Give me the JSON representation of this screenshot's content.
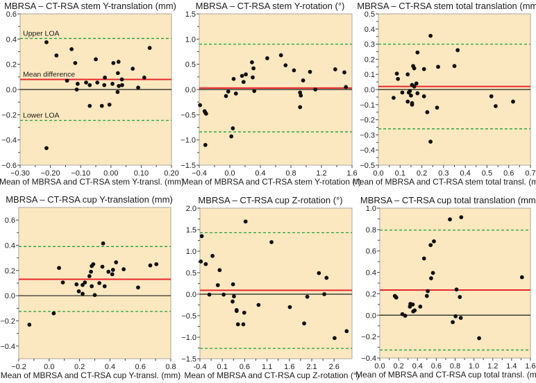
{
  "colors": {
    "background": "#fbe8c0",
    "mean_line": "#e8262b",
    "loa_line": "#1f9e3a",
    "zero_line": "#1a1a1a",
    "points": "#111111",
    "frame": "#b9b2a6"
  },
  "chart_data": [
    {
      "type": "scatter",
      "title": "MBRSA – CT-RSA stem Y-translation (mm)",
      "xlabel": "Mean of MBRSA and CT-RSA stem Y-transl. (mm)",
      "ylabel": "",
      "xlim": [
        -0.3,
        0.2
      ],
      "ylim": [
        -0.6,
        0.6
      ],
      "xticks": [
        -0.3,
        -0.2,
        -0.1,
        0.0,
        0.1,
        0.2
      ],
      "xtick_labels": [
        "−0.30",
        "−0.20",
        "−0.10",
        "0.00",
        "0.10",
        "0.20"
      ],
      "yticks": [
        -0.6,
        -0.4,
        -0.2,
        0.0,
        0.2,
        0.4,
        0.6
      ],
      "ytick_labels": [
        "−0.6",
        "−0.4",
        "−0.2",
        "0.0",
        "0.2",
        "0.4",
        "0.6"
      ],
      "mean_difference": 0.08,
      "upper_loa": 0.405,
      "lower_loa": -0.245,
      "annotations": {
        "upper": "Upper LOA",
        "mean": "Mean difference",
        "lower": "Lower LOA"
      },
      "points": [
        [
          -0.213,
          0.375
        ],
        [
          -0.18,
          0.27
        ],
        [
          -0.13,
          0.32
        ],
        [
          -0.118,
          0.21
        ],
        [
          -0.145,
          0.07
        ],
        [
          -0.11,
          0.045
        ],
        [
          -0.113,
          0.0
        ],
        [
          -0.082,
          0.055
        ],
        [
          -0.07,
          0.035
        ],
        [
          -0.045,
          0.055
        ],
        [
          -0.05,
          0.24
        ],
        [
          -0.02,
          0.095
        ],
        [
          -0.022,
          0.035
        ],
        [
          0.005,
          0.045
        ],
        [
          0.008,
          0.21
        ],
        [
          0.025,
          0.22
        ],
        [
          0.023,
          0.13
        ],
        [
          0.036,
          0.08
        ],
        [
          0.026,
          0.028
        ],
        [
          0.037,
          0.035
        ],
        [
          0.022,
          -0.02
        ],
        [
          -0.07,
          -0.13
        ],
        [
          -0.03,
          -0.13
        ],
        [
          -0.005,
          -0.12
        ],
        [
          0.072,
          0.165
        ],
        [
          0.09,
          0.015
        ],
        [
          0.11,
          0.095
        ],
        [
          0.128,
          0.33
        ],
        [
          -0.213,
          -0.465
        ]
      ]
    },
    {
      "type": "scatter",
      "title": "MBRSA – CT-RSA stem Y-rotation (°)",
      "xlabel": "Mean of MBRSA and CT-RSA stem Y-rotation (°)",
      "ylabel": "",
      "xlim": [
        -0.4,
        1.6
      ],
      "ylim": [
        -1.5,
        1.5
      ],
      "xticks": [
        -0.4,
        0.0,
        0.4,
        0.8,
        1.2,
        1.6
      ],
      "xtick_labels": [
        "−0.4",
        "0.0",
        "0.4",
        "0.8",
        "1.2",
        "1.6"
      ],
      "yticks": [
        -1.5,
        -1.0,
        -0.5,
        0.0,
        0.5,
        1.0,
        1.5
      ],
      "ytick_labels": [
        "−1.5",
        "−1.0",
        "−0.5",
        "0.0",
        "0.5",
        "1.0",
        "1.5"
      ],
      "mean_difference": 0.03,
      "upper_loa": 0.9,
      "lower_loa": -0.84,
      "points": [
        [
          -0.39,
          -0.31
        ],
        [
          -0.33,
          -0.43
        ],
        [
          -0.32,
          -0.46
        ],
        [
          -0.31,
          -0.48
        ],
        [
          -0.32,
          -1.1
        ],
        [
          -0.05,
          -0.13
        ],
        [
          -0.02,
          -0.04
        ],
        [
          0.08,
          -0.08
        ],
        [
          0.02,
          -0.93
        ],
        [
          0.04,
          -0.77
        ],
        [
          0.05,
          0.21
        ],
        [
          0.16,
          0.27
        ],
        [
          0.18,
          0.15
        ],
        [
          0.21,
          0.3
        ],
        [
          0.29,
          0.54
        ],
        [
          0.31,
          0.42
        ],
        [
          0.3,
          0.24
        ],
        [
          0.32,
          -0.03
        ],
        [
          0.49,
          0.62
        ],
        [
          0.67,
          0.68
        ],
        [
          0.73,
          0.48
        ],
        [
          0.84,
          0.38
        ],
        [
          0.92,
          -0.06
        ],
        [
          0.93,
          -0.12
        ],
        [
          0.92,
          -0.35
        ],
        [
          0.96,
          0.18
        ],
        [
          1.05,
          0.35
        ],
        [
          1.12,
          0.0
        ],
        [
          1.38,
          0.4
        ],
        [
          1.5,
          0.34
        ],
        [
          1.52,
          0.05
        ]
      ]
    },
    {
      "type": "scatter",
      "title": "MBRSA – CT-RSA stem total translation (mm)",
      "xlabel": "Mean of MBRSA and CT-RSA stem total transl. (mm)",
      "ylabel": "",
      "xlim": [
        0.0,
        0.7
      ],
      "ylim": [
        -0.5,
        0.5
      ],
      "xticks": [
        0.0,
        0.1,
        0.2,
        0.3,
        0.4,
        0.5,
        0.6,
        0.7
      ],
      "xtick_labels": [
        "0.0",
        "0.1",
        "0.2",
        "0.3",
        "0.4",
        "0.5",
        "0.6",
        "0.7"
      ],
      "yticks": [
        -0.5,
        -0.4,
        -0.3,
        -0.2,
        -0.1,
        0.0,
        0.1,
        0.2,
        0.3,
        0.4,
        0.5
      ],
      "ytick_labels": [
        "−0.5",
        "−0.4",
        "−0.3",
        "−0.2",
        "−0.1",
        "0.0",
        "0.1",
        "0.2",
        "0.3",
        "0.4",
        "0.5"
      ],
      "mean_difference": 0.02,
      "upper_loa": 0.3,
      "lower_loa": -0.26,
      "points": [
        [
          0.07,
          -0.055
        ],
        [
          0.085,
          0.105
        ],
        [
          0.09,
          0.07
        ],
        [
          0.11,
          -0.02
        ],
        [
          0.135,
          -0.08
        ],
        [
          0.135,
          0.1
        ],
        [
          0.14,
          -0.02
        ],
        [
          0.145,
          -0.01
        ],
        [
          0.15,
          -0.04
        ],
        [
          0.155,
          -0.09
        ],
        [
          0.155,
          -0.1
        ],
        [
          0.155,
          0.03
        ],
        [
          0.16,
          0.155
        ],
        [
          0.165,
          0.14
        ],
        [
          0.165,
          0.02
        ],
        [
          0.175,
          0.04
        ],
        [
          0.18,
          0.245
        ],
        [
          0.18,
          -0.025
        ],
        [
          0.21,
          0.135
        ],
        [
          0.21,
          -0.045
        ],
        [
          0.225,
          -0.15
        ],
        [
          0.24,
          0.355
        ],
        [
          0.24,
          -0.345
        ],
        [
          0.27,
          -0.12
        ],
        [
          0.275,
          0.15
        ],
        [
          0.35,
          0.155
        ],
        [
          0.365,
          0.26
        ],
        [
          0.52,
          -0.045
        ],
        [
          0.54,
          -0.11
        ],
        [
          0.62,
          -0.08
        ]
      ]
    },
    {
      "type": "scatter",
      "title": "MBRSA – CT-RSA cup Y-translation (mm)",
      "xlabel": "Mean of MBRSA and CT-RSA cup Y-transl. (mm)",
      "ylabel": "",
      "xlim": [
        -0.2,
        0.8
      ],
      "ylim": [
        -0.5,
        0.7
      ],
      "xticks": [
        -0.2,
        0.0,
        0.2,
        0.4,
        0.6,
        0.8
      ],
      "xtick_labels": [
        "−0.2",
        "0.0",
        "0.2",
        "0.4",
        "0.6",
        "0.8"
      ],
      "yticks": [
        -0.4,
        -0.2,
        0.0,
        0.2,
        0.4,
        0.6
      ],
      "ytick_labels": [
        "−0.4",
        "−0.2",
        "0.0",
        "0.2",
        "0.4",
        "0.6"
      ],
      "mean_difference": 0.13,
      "upper_loa": 0.39,
      "lower_loa": -0.125,
      "points": [
        [
          -0.13,
          -0.23
        ],
        [
          0.03,
          -0.14
        ],
        [
          0.065,
          0.22
        ],
        [
          0.09,
          0.105
        ],
        [
          0.18,
          0.09
        ],
        [
          0.195,
          0.035
        ],
        [
          0.22,
          0.015
        ],
        [
          0.22,
          0.085
        ],
        [
          0.235,
          0.105
        ],
        [
          0.265,
          0.155
        ],
        [
          0.275,
          0.19
        ],
        [
          0.28,
          0.235
        ],
        [
          0.29,
          0.25
        ],
        [
          0.28,
          0.075
        ],
        [
          0.3,
          0.005
        ],
        [
          0.33,
          0.1
        ],
        [
          0.35,
          0.23
        ],
        [
          0.355,
          0.415
        ],
        [
          0.365,
          0.075
        ],
        [
          0.39,
          0.19
        ],
        [
          0.415,
          0.17
        ],
        [
          0.42,
          0.205
        ],
        [
          0.44,
          0.265
        ],
        [
          0.49,
          0.21
        ],
        [
          0.585,
          0.065
        ],
        [
          0.665,
          0.24
        ],
        [
          0.705,
          0.25
        ]
      ]
    },
    {
      "type": "scatter",
      "title": "MBRSA – CT-RSA cup Z-rotation (°)",
      "xlabel": "Mean of MBRSA and CT-RSA cup Z-rotation (°)",
      "ylabel": "",
      "xlim": [
        -0.4,
        3.0
      ],
      "ylim": [
        -1.5,
        2.0
      ],
      "xticks": [
        -0.4,
        0.1,
        0.6,
        1.1,
        1.6,
        2.1,
        2.6
      ],
      "xtick_labels": [
        "-0.4",
        "0.1",
        "0.6",
        "1.1",
        "1.6",
        "2.1",
        "2.6"
      ],
      "yticks": [
        -1.5,
        -1.0,
        -0.5,
        0.0,
        0.5,
        1.0,
        1.5,
        2.0
      ],
      "ytick_labels": [
        "−1.5",
        "−1.0",
        "−0.5",
        "0.0",
        "0.5",
        "1.0",
        "1.5",
        "2.0"
      ],
      "mean_difference": 0.09,
      "upper_loa": 1.43,
      "lower_loa": -1.26,
      "points": [
        [
          -0.38,
          0.76
        ],
        [
          -0.36,
          1.35
        ],
        [
          -0.27,
          0.7
        ],
        [
          -0.19,
          -0.01
        ],
        [
          -0.12,
          0.89
        ],
        [
          0.04,
          0.56
        ],
        [
          0.0,
          0.21
        ],
        [
          0.13,
          -0.01
        ],
        [
          0.34,
          0.23
        ],
        [
          0.33,
          -0.17
        ],
        [
          0.36,
          -0.05
        ],
        [
          0.42,
          -0.37
        ],
        [
          0.42,
          -0.39
        ],
        [
          0.45,
          -0.7
        ],
        [
          0.57,
          -0.7
        ],
        [
          0.59,
          -0.43
        ],
        [
          0.62,
          1.69
        ],
        [
          0.91,
          -0.25
        ],
        [
          1.2,
          1.21
        ],
        [
          1.61,
          -0.3
        ],
        [
          1.93,
          -0.68
        ],
        [
          2.0,
          -0.06
        ],
        [
          2.26,
          0.49
        ],
        [
          2.38,
          0.0
        ],
        [
          2.43,
          0.38
        ],
        [
          2.61,
          -1.02
        ],
        [
          2.88,
          -0.86
        ]
      ]
    },
    {
      "type": "scatter",
      "title": "MBRSA – CT-RSA cup total translation (mm)",
      "xlabel": "Mean of MBRSA and CT-RSA cup total transl. (mm)",
      "ylabel": "",
      "xlim": [
        0.0,
        1.6
      ],
      "ylim": [
        -0.4,
        1.0
      ],
      "xticks": [
        0.0,
        0.2,
        0.4,
        0.6,
        0.8,
        1.0,
        1.2,
        1.4,
        1.6
      ],
      "xtick_labels": [
        "0.0",
        "0.2",
        "0.4",
        "0.6",
        "0.8",
        "1.0",
        "1.2",
        "1.4",
        "1.6"
      ],
      "yticks": [
        -0.4,
        -0.2,
        0.0,
        0.2,
        0.4,
        0.6,
        0.8,
        1.0
      ],
      "ytick_labels": [
        "−0.4",
        "−0.2",
        "0.0",
        "0.2",
        "0.4",
        "0.6",
        "0.8",
        "1.0"
      ],
      "mean_difference": 0.235,
      "upper_loa": 0.795,
      "lower_loa": -0.325,
      "points": [
        [
          0.16,
          0.18
        ],
        [
          0.17,
          0.17
        ],
        [
          0.175,
          0.165
        ],
        [
          0.24,
          0.01
        ],
        [
          0.27,
          -0.005
        ],
        [
          0.32,
          0.08
        ],
        [
          0.325,
          0.105
        ],
        [
          0.35,
          0.1
        ],
        [
          0.355,
          0.035
        ],
        [
          0.37,
          0.045
        ],
        [
          0.43,
          0.08
        ],
        [
          0.47,
          0.53
        ],
        [
          0.5,
          0.18
        ],
        [
          0.51,
          0.225
        ],
        [
          0.54,
          0.655
        ],
        [
          0.545,
          0.345
        ],
        [
          0.565,
          0.395
        ],
        [
          0.575,
          0.69
        ],
        [
          0.745,
          0.895
        ],
        [
          0.775,
          -0.065
        ],
        [
          0.805,
          -0.01
        ],
        [
          0.815,
          0.24
        ],
        [
          0.85,
          0.17
        ],
        [
          0.86,
          -0.025
        ],
        [
          0.865,
          0.915
        ],
        [
          1.055,
          -0.215
        ],
        [
          1.51,
          0.355
        ]
      ]
    }
  ]
}
